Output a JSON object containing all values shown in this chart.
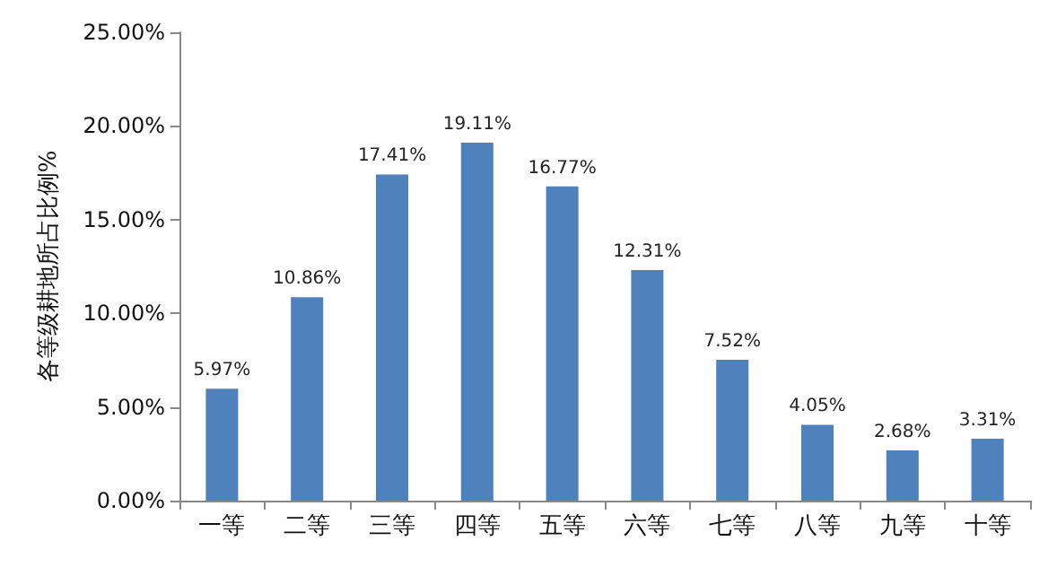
{
  "chart_data": {
    "type": "bar",
    "ylabel": "各等级耕地所占比例%",
    "categories": [
      "一等",
      "二等",
      "三等",
      "四等",
      "五等",
      "六等",
      "七等",
      "八等",
      "九等",
      "十等"
    ],
    "values": [
      5.97,
      10.86,
      17.41,
      19.11,
      16.77,
      12.31,
      7.52,
      4.05,
      2.68,
      3.31
    ],
    "value_labels": [
      "5.97%",
      "10.86%",
      "17.41%",
      "19.11%",
      "16.77%",
      "12.31%",
      "7.52%",
      "4.05%",
      "2.68%",
      "3.31%"
    ],
    "color": "#4f81bd",
    "ylim": [
      0,
      25
    ],
    "yticks": [
      {
        "value": 0,
        "label": "0.00%"
      },
      {
        "value": 5,
        "label": "5.00%"
      },
      {
        "value": 10,
        "label": "10.00%"
      },
      {
        "value": 15,
        "label": "15.00%"
      },
      {
        "value": 20,
        "label": "20.00%"
      },
      {
        "value": 25,
        "label": "25.00%"
      }
    ],
    "grid": false
  }
}
